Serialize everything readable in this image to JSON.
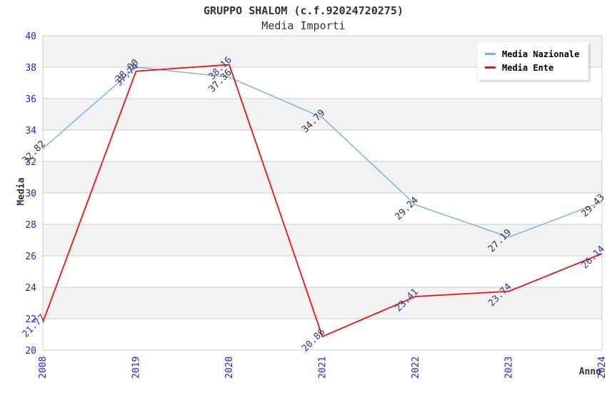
{
  "chart_data": {
    "type": "line",
    "title": "GRUPPO SHALOM (c.f.92024720275)",
    "subtitle": "Media Importi",
    "xlabel": "Anno",
    "ylabel": "Media",
    "categories": [
      "2008",
      "2019",
      "2020",
      "2021",
      "2022",
      "2023",
      "2024"
    ],
    "series": [
      {
        "name": "Media Nazionale",
        "color": "#74b2e1",
        "label_color": "#333333",
        "line_width": 1.4,
        "values": [
          32.82,
          38.0,
          37.36,
          34.79,
          29.24,
          27.19,
          29.43
        ]
      },
      {
        "name": "Media Ente",
        "color": "#ee1111",
        "label_color": "#333399",
        "line_width": 1.8,
        "values": [
          21.77,
          37.74,
          38.16,
          20.86,
          23.41,
          23.74,
          26.14
        ]
      }
    ],
    "ylim": [
      20,
      40
    ],
    "ytick_step": 2,
    "grid": "horizontal",
    "legend_position": "top-right",
    "colors": {
      "tick_label": "#2222cc",
      "grid_line": "#cccccc",
      "axis_line": "#cccccc",
      "band_a": "#f2f2f2",
      "band_b": "#ffffff",
      "title_text": "#333333"
    }
  }
}
